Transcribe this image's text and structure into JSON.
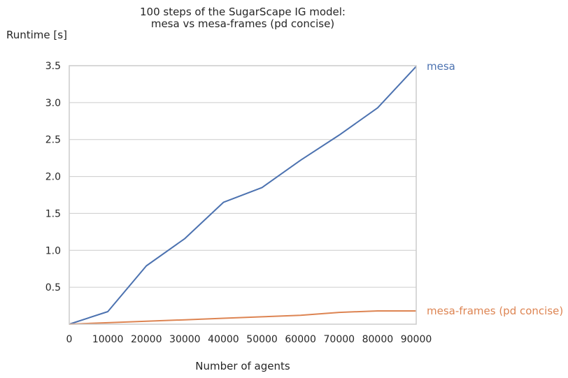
{
  "chart_data": {
    "type": "line",
    "title_lines": [
      "100 steps of the SugarScape IG model:",
      "mesa vs mesa-frames (pd concise)"
    ],
    "ylabel": "Runtime [s]",
    "xlabel": "Number of agents",
    "xlim": [
      0,
      90000
    ],
    "ylim": [
      0,
      3.5
    ],
    "x": [
      0,
      10000,
      20000,
      30000,
      40000,
      50000,
      60000,
      70000,
      80000,
      90000
    ],
    "x_ticks": [
      "0",
      "10000",
      "20000",
      "30000",
      "40000",
      "50000",
      "60000",
      "70000",
      "80000",
      "90000"
    ],
    "y_tick_values": [
      0.5,
      1.0,
      1.5,
      2.0,
      2.5,
      3.0,
      3.5
    ],
    "y_ticks": [
      "0.5",
      "1.0",
      "1.5",
      "2.0",
      "2.5",
      "3.0",
      "3.5"
    ],
    "grid": "horizontal",
    "legend": "inline labels at right end of each line",
    "series": [
      {
        "name": "mesa",
        "color": "#4c72b0",
        "values": [
          0.0,
          0.17,
          0.79,
          1.16,
          1.65,
          1.85,
          2.22,
          2.56,
          2.93,
          3.49
        ]
      },
      {
        "name": "mesa-frames (pd concise)",
        "color": "#dd8452",
        "values": [
          0.0,
          0.02,
          0.04,
          0.06,
          0.08,
          0.1,
          0.12,
          0.16,
          0.18,
          0.18
        ]
      }
    ]
  }
}
